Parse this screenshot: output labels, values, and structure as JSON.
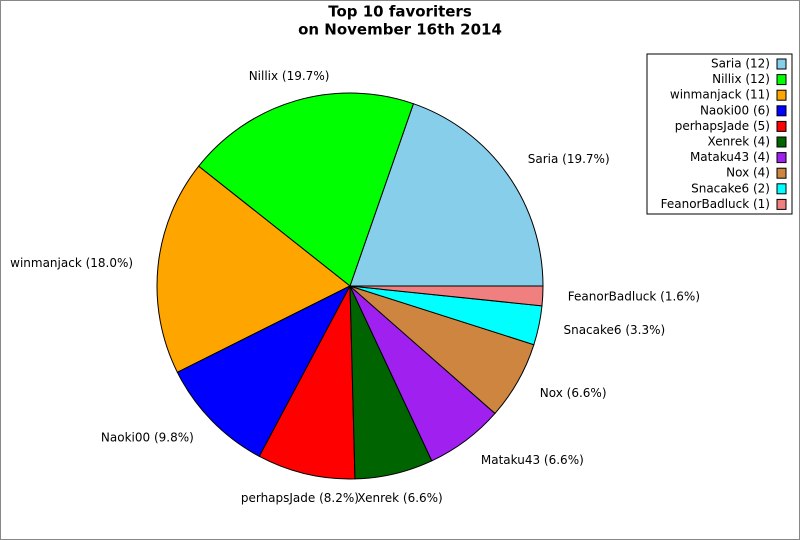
{
  "chart_data": {
    "type": "pie",
    "title": [
      "Top 10 favoriters",
      "on November 16th 2014"
    ],
    "values": [
      12,
      12,
      11,
      6,
      5,
      4,
      4,
      4,
      2,
      1
    ],
    "labels": [
      "Saria (19.7%)",
      "Nillix (19.7%)",
      "winmanjack (18.0%)",
      "Naoki00 (9.8%)",
      "perhapsJade (8.2%)",
      "Xenrek (6.6%)",
      "Mataku43 (6.6%)",
      "Nox (6.6%)",
      "Snacake6 (3.3%)",
      "FeanorBadluck (1.6%)"
    ],
    "legend_labels": [
      "Saria (12)",
      "Nillix (12)",
      "winmanjack (11)",
      "Naoki00 (6)",
      "perhapsJade (5)",
      "Xenrek (4)",
      "Mataku43 (4)",
      "Nox (4)",
      "Snacake6 (2)",
      "FeanorBadluck (1)"
    ],
    "colors": [
      "#87ceeb",
      "#00ff00",
      "#ffa500",
      "#0000ff",
      "#ff0000",
      "#006400",
      "#a020f0",
      "#cd853f",
      "#00ffff",
      "#f08080"
    ],
    "legend": "top-right"
  }
}
